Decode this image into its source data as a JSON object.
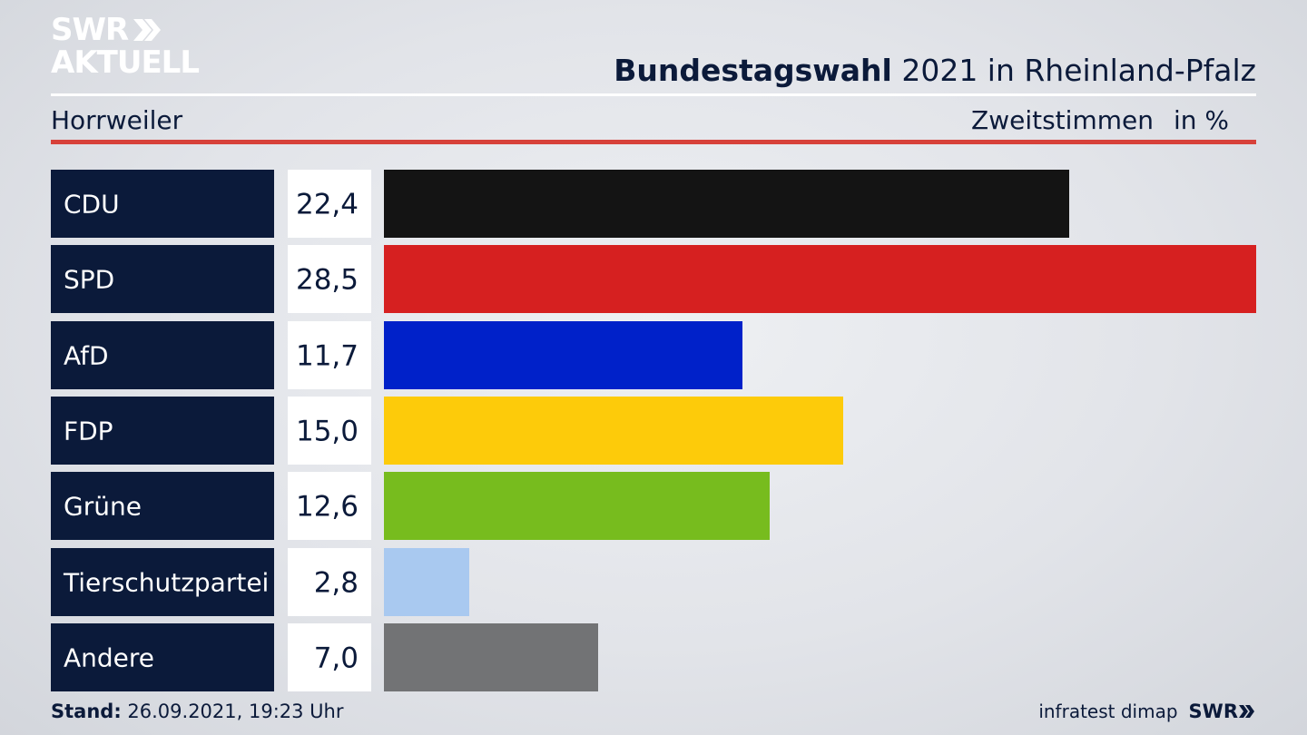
{
  "logo": {
    "line1": "SWR",
    "line2": "AKTUELL"
  },
  "header": {
    "title_bold": "Bundestagswahl",
    "title_rest": " 2021 in Rheinland-Pfalz",
    "location": "Horrweiler",
    "measure": "Zweitstimmen",
    "unit": "in %"
  },
  "chart_data": {
    "type": "bar",
    "orientation": "horizontal",
    "title": "Bundestagswahl 2021 in Rheinland-Pfalz",
    "categories": [
      "CDU",
      "SPD",
      "AfD",
      "FDP",
      "Grüne",
      "Tierschutzpartei",
      "Andere"
    ],
    "values": [
      22.4,
      28.5,
      11.7,
      15.0,
      12.6,
      2.8,
      7.0
    ],
    "value_labels": [
      "22,4",
      "28,5",
      "11,7",
      "15,0",
      "12,6",
      "2,8",
      "7,0"
    ],
    "colors": [
      "#141414",
      "#d62020",
      "#0021c9",
      "#fdcb0a",
      "#77bc1e",
      "#a9c9f0",
      "#727375"
    ],
    "xlim": [
      0,
      28.5
    ],
    "grid": false
  },
  "footer": {
    "stand_label": "Stand:",
    "stand_value": " 26.09.2021, 19:23 Uhr",
    "source": "infratest dimap",
    "brand": "SWR"
  }
}
